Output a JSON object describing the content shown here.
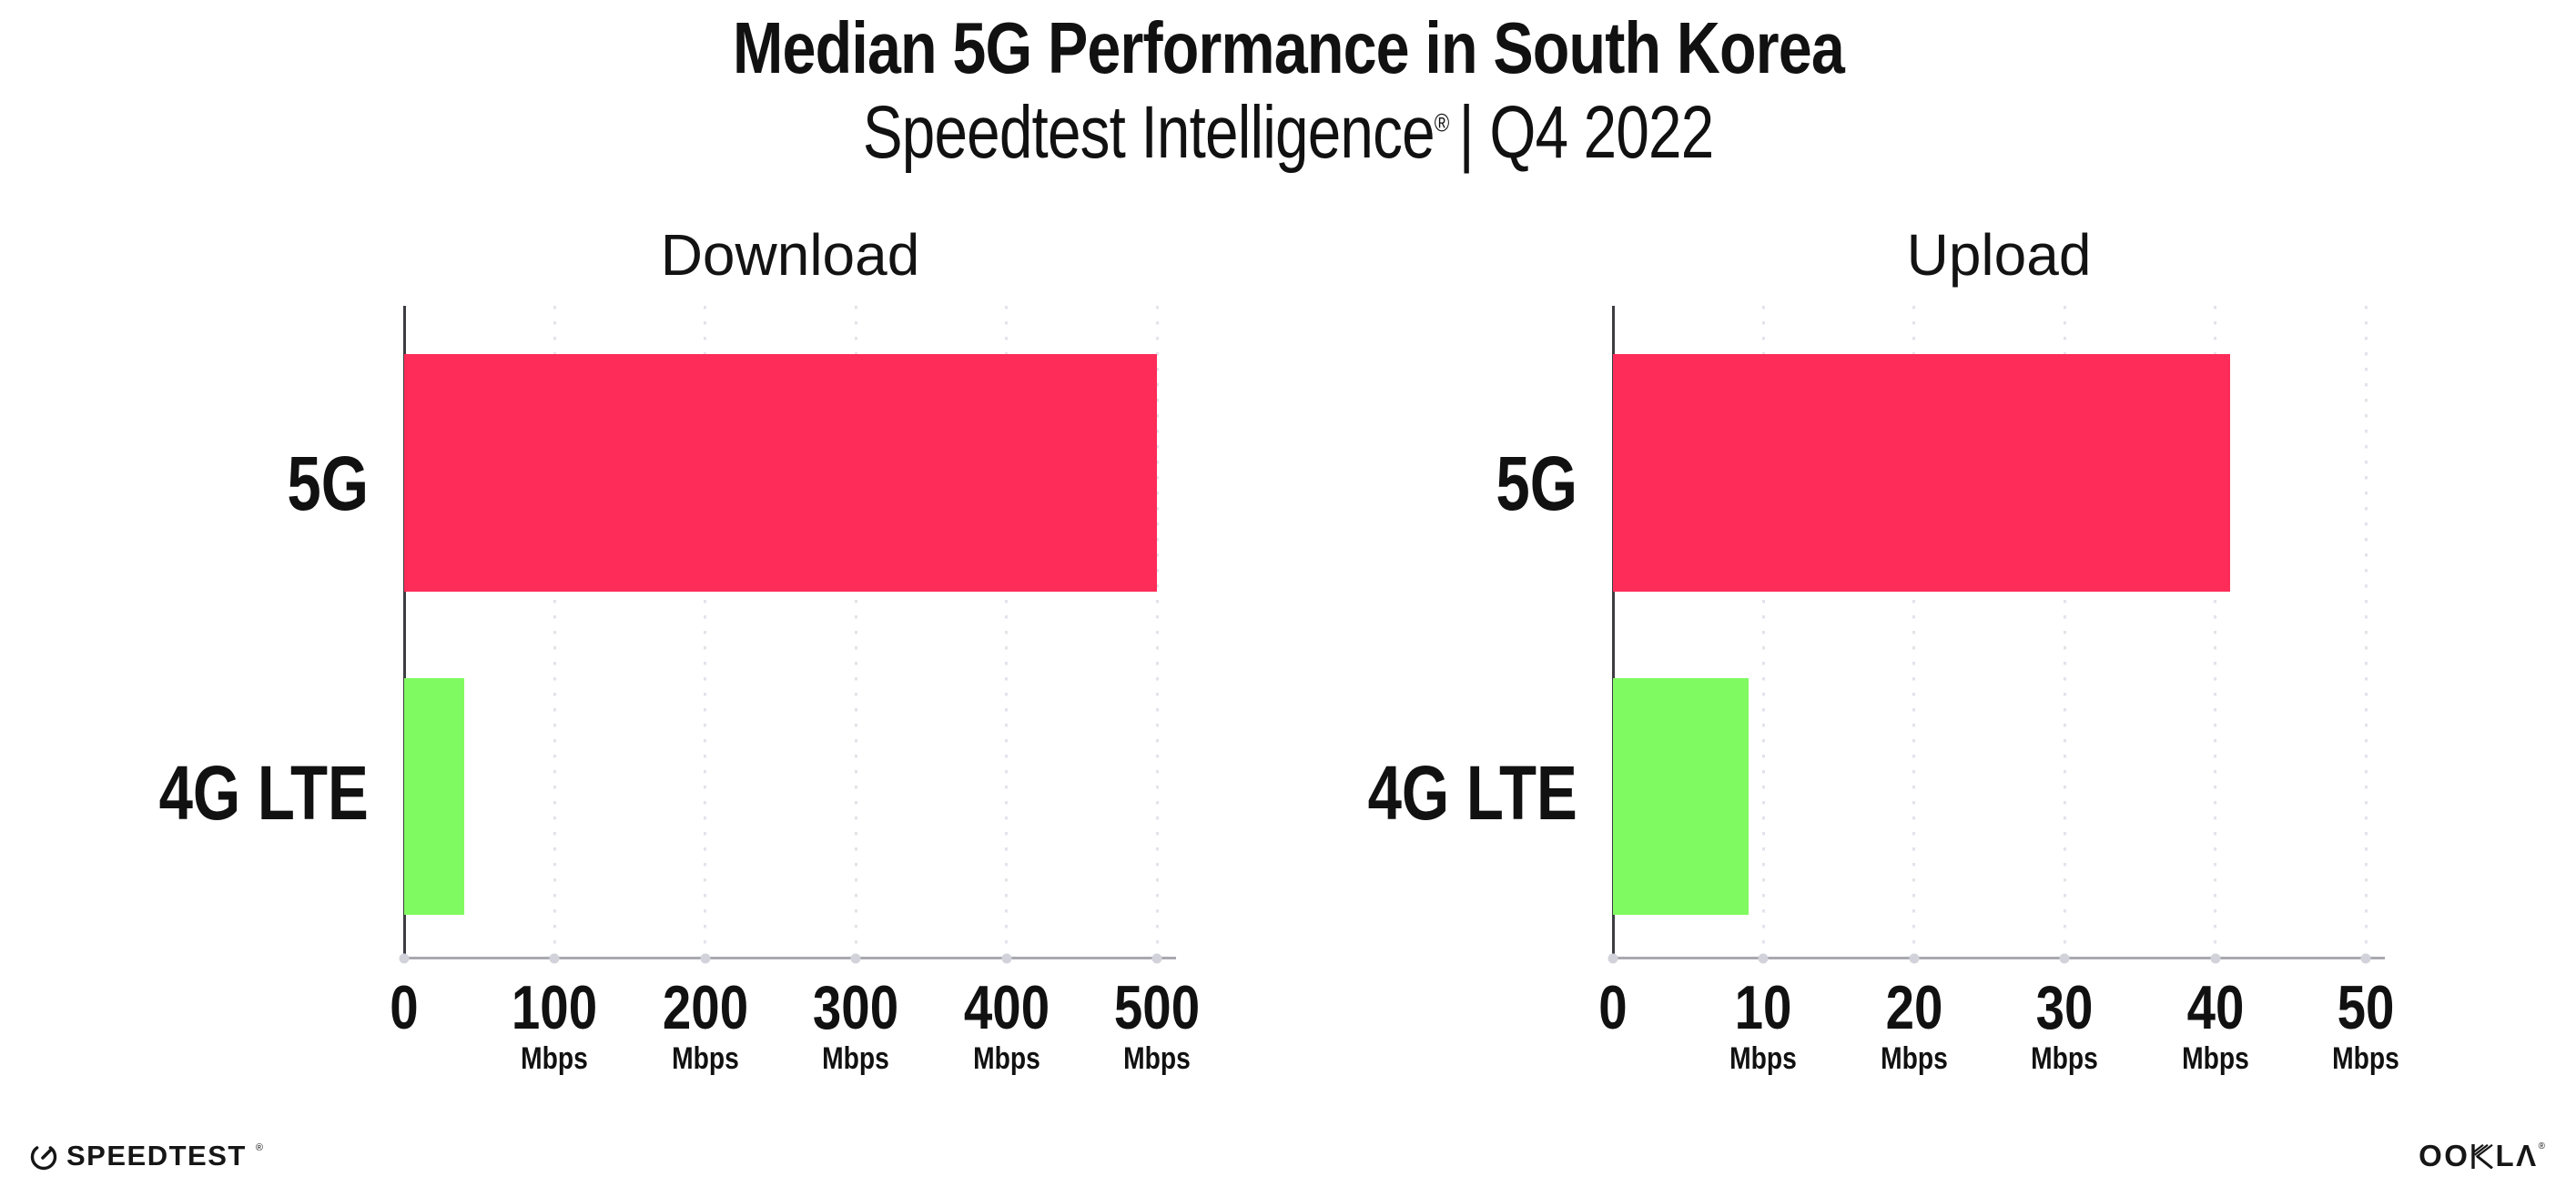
{
  "header": {
    "title": "Median 5G Performance in South Korea",
    "subtitle_brand": "Speedtest Intelligence",
    "subtitle_reg": "®",
    "subtitle_rest": "| Q4 2022"
  },
  "footer": {
    "speedtest_label": "SPEEDTEST",
    "speedtest_reg": "®",
    "ookla_label": "OOKLA",
    "ookla_prefix": "OO",
    "ookla_suffix": "LΛ",
    "ookla_reg": "®"
  },
  "colors": {
    "bar_5g": "#fd2c58",
    "bar_4g_lte": "#80fa61",
    "y_axis": "#3c3c42",
    "x_axis": "#a9a9b0",
    "grid_dot": "#e3e3eb",
    "tick_dot": "#d2d2da",
    "text": "#111111",
    "background": "#ffffff"
  },
  "chart_data": [
    {
      "type": "bar",
      "orientation": "horizontal",
      "title": "Download",
      "categories": [
        "5G",
        "4G LTE"
      ],
      "values": [
        500,
        40
      ],
      "unit": "Mbps",
      "xlabel": "",
      "ylabel": "",
      "xlim": [
        0,
        500
      ],
      "xticks": [
        0,
        100,
        200,
        300,
        400,
        500
      ],
      "series_colors": [
        "#fd2c58",
        "#80fa61"
      ],
      "grid": "dotted-vertical",
      "legend": "none"
    },
    {
      "type": "bar",
      "orientation": "horizontal",
      "title": "Upload",
      "categories": [
        "5G",
        "4G LTE"
      ],
      "values": [
        41,
        9
      ],
      "unit": "Mbps",
      "xlabel": "",
      "ylabel": "",
      "xlim": [
        0,
        50
      ],
      "xticks": [
        0,
        10,
        20,
        30,
        40,
        50
      ],
      "series_colors": [
        "#fd2c58",
        "#80fa61"
      ],
      "grid": "dotted-vertical",
      "legend": "none"
    }
  ]
}
